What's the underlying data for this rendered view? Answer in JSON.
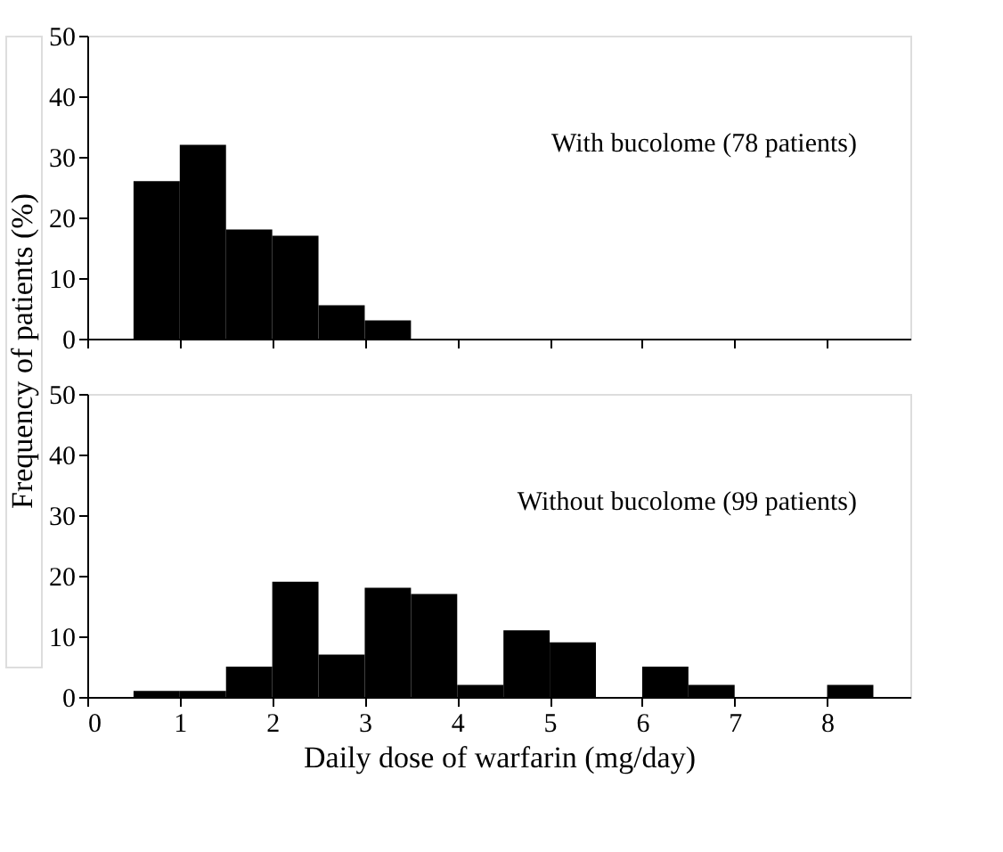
{
  "chart_data": [
    {
      "type": "histogram",
      "bins": [
        0.5,
        1,
        1.5,
        2,
        2.5,
        3,
        3.5,
        4,
        4.5,
        5,
        5.5,
        6,
        6.5,
        7,
        7.5,
        8,
        8.5
      ],
      "values": [
        26,
        32,
        18,
        17,
        5.5,
        3,
        0,
        0,
        0,
        0,
        0,
        0,
        0,
        0,
        0,
        0
      ],
      "color": "#000000",
      "xlim": [
        0,
        8.9
      ],
      "xticks": [
        0,
        1,
        2,
        3,
        4,
        5,
        6,
        7,
        8
      ],
      "ylim": [
        0,
        50
      ],
      "yticks": [
        0,
        10,
        20,
        30,
        40,
        50
      ],
      "tick_labels": "y",
      "annotations": [
        "With bucolome (78 patients)"
      ],
      "grid": false
    },
    {
      "type": "histogram",
      "bins": [
        0.5,
        1,
        1.5,
        2,
        2.5,
        3,
        3.5,
        4,
        4.5,
        5,
        5.5,
        6,
        6.5,
        7,
        7.5,
        8,
        8.5
      ],
      "values": [
        1,
        1,
        5,
        19,
        7,
        18,
        17,
        2,
        11,
        9,
        0,
        5,
        2,
        0,
        0,
        2
      ],
      "color": "#000000",
      "xlim": [
        0,
        8.9
      ],
      "xticks": [
        0,
        1,
        2,
        3,
        4,
        5,
        6,
        7,
        8
      ],
      "ylim": [
        0,
        50
      ],
      "yticks": [
        0,
        10,
        20,
        30,
        40,
        50
      ],
      "xlabel": "Daily dose of warfarin (mg/day)",
      "ylabel": "Frequency of patients (%)",
      "annotations": [
        "Without bucolome (99 patients)"
      ],
      "grid": false
    }
  ]
}
